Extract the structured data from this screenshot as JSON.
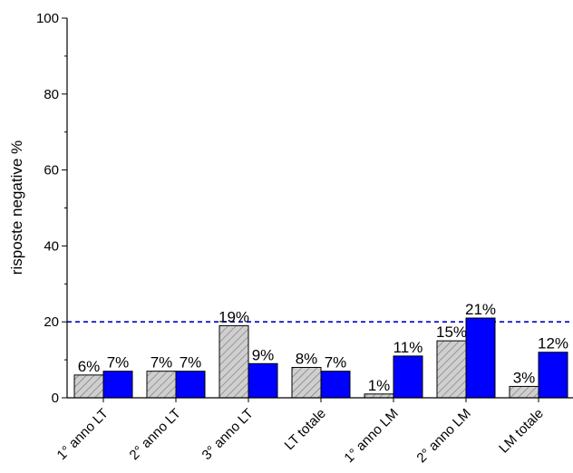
{
  "chart_data": {
    "type": "bar",
    "categories": [
      "1° anno LT",
      "2° anno LT",
      "3° anno LT",
      "LT totale",
      "1° anno LM",
      "2° anno LM",
      "LM totale"
    ],
    "series": [
      {
        "values": [
          6,
          7,
          19,
          8,
          1,
          15,
          3
        ],
        "labels": [
          "6%",
          "7%",
          "19%",
          "8%",
          "1%",
          "15%",
          "3%"
        ],
        "color": "#cfcfcf",
        "pattern": "hatched"
      },
      {
        "values": [
          7,
          7,
          9,
          7,
          11,
          21,
          12
        ],
        "labels": [
          "7%",
          "7%",
          "9%",
          "7%",
          "11%",
          "21%",
          "12%"
        ],
        "color": "#0000ff"
      }
    ],
    "ylabel": "risposte negative %",
    "xlabel": "",
    "ylim": [
      0,
      100
    ],
    "yticks": [
      0,
      20,
      40,
      60,
      80,
      100
    ],
    "reference_line": {
      "value": 20,
      "style": "dashed",
      "color": "#0000cc"
    },
    "grid": false,
    "legend": "none"
  }
}
